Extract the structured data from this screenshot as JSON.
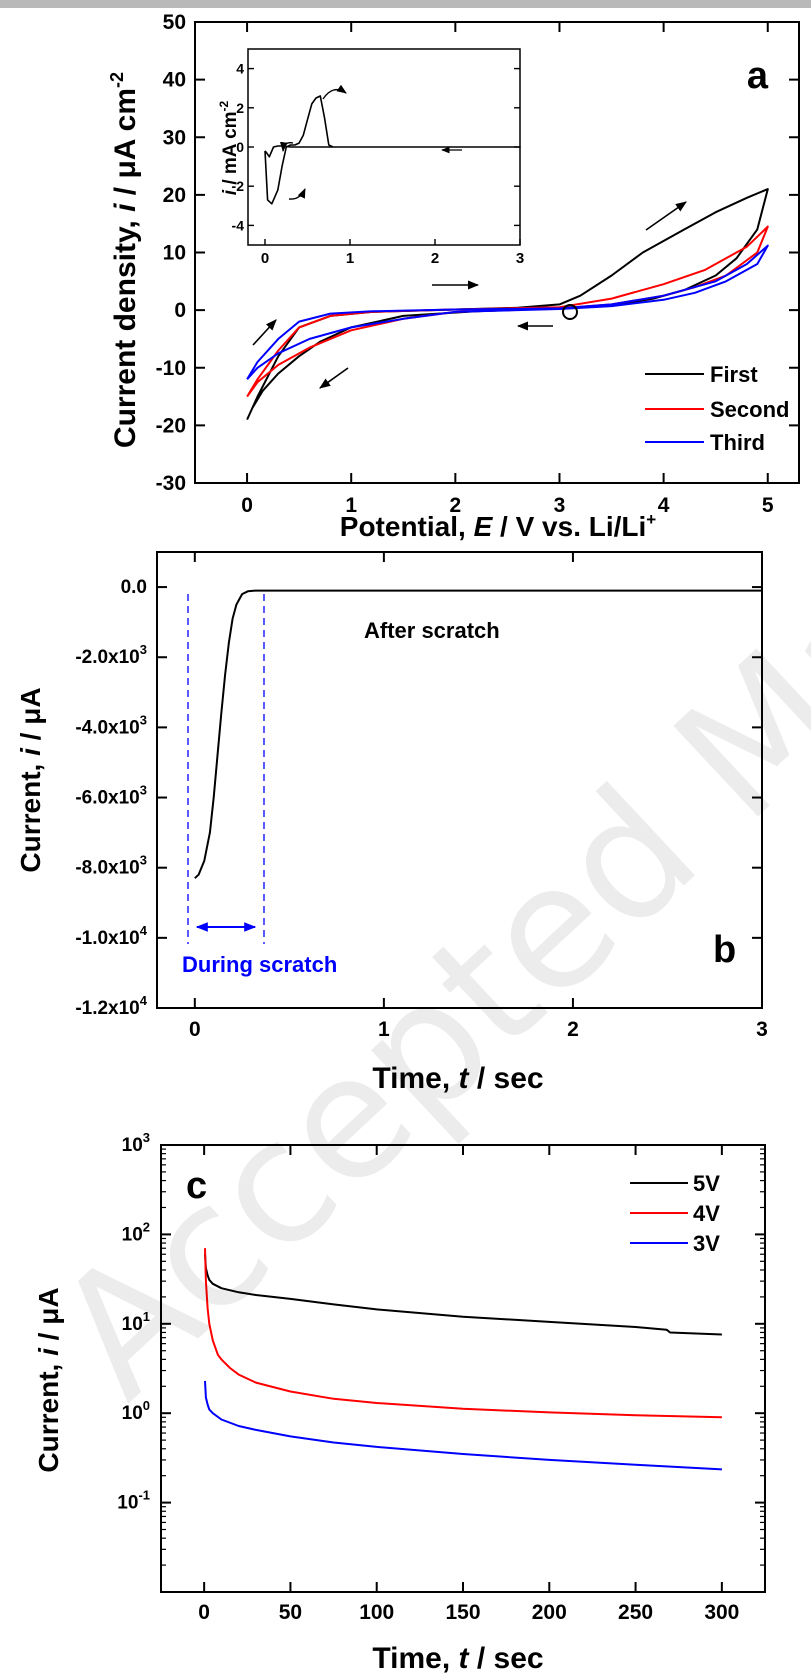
{
  "chart_data": [
    {
      "panel": "a",
      "type": "line",
      "xlabel": "Potential, E / V vs. Li/Li+",
      "ylabel": "Current density, i / μA cm-2",
      "xlim": [
        -0.5,
        5.3
      ],
      "ylim": [
        -30,
        50
      ],
      "xticks": [
        "0",
        "1",
        "2",
        "3",
        "4",
        "5"
      ],
      "yticks": [
        "-30",
        "-20",
        "-10",
        "0",
        "10",
        "20",
        "30",
        "40",
        "50"
      ],
      "legend_position": "bottom-right",
      "series": [
        {
          "name": "First",
          "color": "#000000",
          "x": [
            0.0,
            0.1,
            0.3,
            0.5,
            0.8,
            1.2,
            2.0,
            2.6,
            3.0,
            3.2,
            3.5,
            3.8,
            4.2,
            4.5,
            4.8,
            5.0,
            4.9,
            4.7,
            4.5,
            4.2,
            3.9,
            3.5,
            3.0,
            2.2,
            1.5,
            1.0,
            0.7,
            0.5,
            0.3,
            0.15,
            0.05,
            0.0
          ],
          "y": [
            -19,
            -15,
            -8,
            -3,
            -1,
            -0.3,
            0.1,
            0.4,
            1.0,
            2.5,
            6,
            10,
            14,
            17,
            19.5,
            21,
            14,
            9,
            6,
            3.5,
            2,
            0.8,
            0.3,
            -0.2,
            -1,
            -3,
            -5.5,
            -8,
            -11,
            -14,
            -17,
            -19
          ]
        },
        {
          "name": "Second",
          "color": "#ff0000",
          "x": [
            0.0,
            0.1,
            0.3,
            0.5,
            0.8,
            1.2,
            2.0,
            3.0,
            3.5,
            4.0,
            4.4,
            4.8,
            5.0,
            4.9,
            4.6,
            4.3,
            4.0,
            3.5,
            3.0,
            2.0,
            1.5,
            1.0,
            0.6,
            0.3,
            0.1,
            0.0
          ],
          "y": [
            -15,
            -12,
            -7,
            -3,
            -1,
            -0.3,
            0.1,
            0.5,
            2,
            4.5,
            7,
            11,
            14.5,
            10,
            6,
            4,
            2.5,
            1,
            0.3,
            -0.3,
            -1.5,
            -3.5,
            -6.5,
            -9.5,
            -12.5,
            -15
          ]
        },
        {
          "name": "Third",
          "color": "#0000ff",
          "x": [
            0.0,
            0.1,
            0.3,
            0.5,
            0.8,
            1.2,
            2.0,
            3.0,
            3.5,
            4.0,
            4.5,
            4.8,
            5.0,
            4.9,
            4.6,
            4.3,
            4.0,
            3.5,
            3.0,
            2.0,
            1.5,
            1.0,
            0.6,
            0.3,
            0.1,
            0.0
          ],
          "y": [
            -12,
            -9,
            -5,
            -2,
            -0.6,
            -0.2,
            0.1,
            0.3,
            1,
            2.5,
            5,
            8,
            11.2,
            8,
            5,
            3,
            1.8,
            0.7,
            0.2,
            -0.3,
            -1.5,
            -3,
            -5,
            -7.5,
            -10,
            -12
          ]
        }
      ],
      "annotation": "a",
      "inset": {
        "ylabel": "i / mA cm-2",
        "xlim": [
          -0.2,
          3
        ],
        "ylim": [
          -5,
          5
        ],
        "xticks": [
          "0",
          "1",
          "2",
          "3"
        ],
        "yticks": [
          "-4",
          "-2",
          "0",
          "2",
          "4"
        ],
        "x": [
          0.0,
          0.03,
          0.08,
          0.15,
          0.2,
          0.25,
          0.3,
          0.35,
          0.4,
          0.45,
          0.5,
          0.55,
          0.6,
          0.65,
          0.7,
          0.75,
          0.8,
          1.5,
          3.0,
          3.0,
          1.0,
          0.3,
          0.2,
          0.15,
          0.1,
          0.05,
          0.02,
          0.0
        ],
        "y": [
          -0.2,
          -2.7,
          -2.9,
          -2.2,
          -1.0,
          0.0,
          0.1,
          0.1,
          0.2,
          0.6,
          1.4,
          2.2,
          2.5,
          2.6,
          1.5,
          0.1,
          0.0,
          0.0,
          0.0,
          0.0,
          0.0,
          0.0,
          0.05,
          0.05,
          0.0,
          -0.5,
          -0.3,
          -0.2
        ]
      }
    },
    {
      "panel": "b",
      "type": "line",
      "xlabel": "Time, t / sec",
      "ylabel": "Current, i / μA",
      "xlim": [
        -0.2,
        3
      ],
      "ylim": [
        -12000,
        1000
      ],
      "xticks": [
        "0",
        "1",
        "2",
        "3"
      ],
      "yticks": [
        "0.0",
        "-2.0x103",
        "-4.0x103",
        "-6.0x103",
        "-8.0x103",
        "-1.0x104",
        "-1.2x104"
      ],
      "series": [
        {
          "color": "#000000",
          "x": [
            0.0,
            0.02,
            0.05,
            0.08,
            0.1,
            0.12,
            0.14,
            0.16,
            0.18,
            0.2,
            0.22,
            0.25,
            0.28,
            0.32,
            0.36,
            0.5,
            1.0,
            2.0,
            3.0
          ],
          "y": [
            -8300,
            -8200,
            -7800,
            -7000,
            -6000,
            -4800,
            -3600,
            -2500,
            -1600,
            -900,
            -500,
            -200,
            -120,
            -100,
            -100,
            -100,
            -100,
            -100,
            -100
          ]
        }
      ],
      "annotations": [
        "After scratch",
        "During scratch",
        "b"
      ]
    },
    {
      "panel": "c",
      "type": "line",
      "yscale": "log",
      "xlabel": "Time, t / sec",
      "ylabel": "Current, i / μA",
      "xlim": [
        -25,
        325
      ],
      "ylim": [
        0.01,
        1000
      ],
      "xticks": [
        "0",
        "50",
        "100",
        "150",
        "200",
        "250",
        "300"
      ],
      "legend_position": "top-right",
      "series": [
        {
          "name": "5V",
          "color": "#000000",
          "x": [
            0.5,
            1,
            2,
            3,
            5,
            10,
            20,
            30,
            50,
            75,
            100,
            150,
            200,
            250,
            268,
            270,
            300
          ],
          "y": [
            60,
            42,
            35,
            31,
            28,
            25,
            22.5,
            21,
            19,
            16.5,
            14.5,
            12,
            10.5,
            9.2,
            8.6,
            8.0,
            7.6
          ]
        },
        {
          "name": "4V",
          "color": "#ff0000",
          "x": [
            0.5,
            1,
            2,
            3,
            5,
            8,
            10,
            15,
            20,
            30,
            50,
            75,
            100,
            150,
            200,
            250,
            300
          ],
          "y": [
            70,
            30,
            15,
            10,
            6.5,
            4.5,
            4,
            3.2,
            2.7,
            2.2,
            1.75,
            1.45,
            1.3,
            1.12,
            1.02,
            0.95,
            0.9
          ]
        },
        {
          "name": "3V",
          "color": "#0000ff",
          "x": [
            0.5,
            1,
            2,
            3,
            5,
            10,
            20,
            30,
            50,
            75,
            100,
            150,
            200,
            250,
            300
          ],
          "y": [
            2.3,
            1.5,
            1.25,
            1.1,
            1.0,
            0.85,
            0.72,
            0.65,
            0.55,
            0.47,
            0.42,
            0.35,
            0.3,
            0.265,
            0.235
          ]
        }
      ],
      "annotation": "c"
    }
  ],
  "watermark": "Accepted Manuscript"
}
